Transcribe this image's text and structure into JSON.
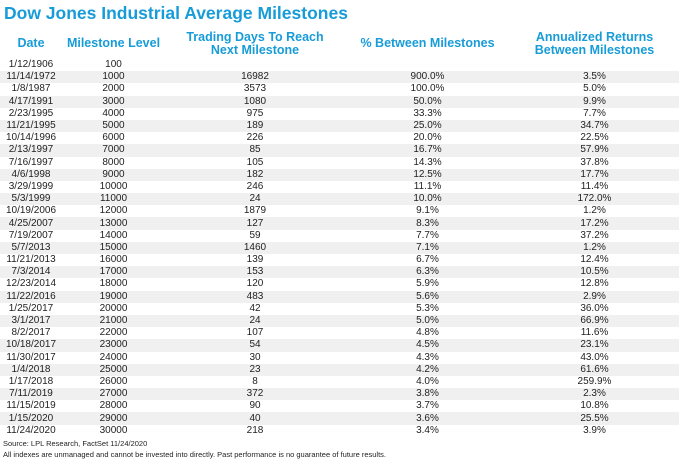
{
  "title": "Dow Jones Industrial Average Milestones",
  "colors": {
    "accent_blue": "#189CD8",
    "row_stripe": "#F0F0F0",
    "body_text": "#1F1F1F",
    "background": "#FFFFFF"
  },
  "chart_data": {
    "type": "table",
    "title": "Dow Jones Industrial Average Milestones",
    "columns": [
      "Date",
      "Milestone Level",
      "Trading Days To Reach\nNext Milestone",
      "% Between Milestones",
      "Annualized Returns\nBetween Milestones"
    ],
    "rows": [
      [
        "1/12/1906",
        "100",
        "",
        "",
        ""
      ],
      [
        "11/14/1972",
        "1000",
        "16982",
        "900.0%",
        "3.5%"
      ],
      [
        "1/8/1987",
        "2000",
        "3573",
        "100.0%",
        "5.0%"
      ],
      [
        "4/17/1991",
        "3000",
        "1080",
        "50.0%",
        "9.9%"
      ],
      [
        "2/23/1995",
        "4000",
        "975",
        "33.3%",
        "7.7%"
      ],
      [
        "11/21/1995",
        "5000",
        "189",
        "25.0%",
        "34.7%"
      ],
      [
        "10/14/1996",
        "6000",
        "226",
        "20.0%",
        "22.5%"
      ],
      [
        "2/13/1997",
        "7000",
        "85",
        "16.7%",
        "57.9%"
      ],
      [
        "7/16/1997",
        "8000",
        "105",
        "14.3%",
        "37.8%"
      ],
      [
        "4/6/1998",
        "9000",
        "182",
        "12.5%",
        "17.7%"
      ],
      [
        "3/29/1999",
        "10000",
        "246",
        "11.1%",
        "11.4%"
      ],
      [
        "5/3/1999",
        "11000",
        "24",
        "10.0%",
        "172.0%"
      ],
      [
        "10/19/2006",
        "12000",
        "1879",
        "9.1%",
        "1.2%"
      ],
      [
        "4/25/2007",
        "13000",
        "127",
        "8.3%",
        "17.2%"
      ],
      [
        "7/19/2007",
        "14000",
        "59",
        "7.7%",
        "37.2%"
      ],
      [
        "5/7/2013",
        "15000",
        "1460",
        "7.1%",
        "1.2%"
      ],
      [
        "11/21/2013",
        "16000",
        "139",
        "6.7%",
        "12.4%"
      ],
      [
        "7/3/2014",
        "17000",
        "153",
        "6.3%",
        "10.5%"
      ],
      [
        "12/23/2014",
        "18000",
        "120",
        "5.9%",
        "12.8%"
      ],
      [
        "11/22/2016",
        "19000",
        "483",
        "5.6%",
        "2.9%"
      ],
      [
        "1/25/2017",
        "20000",
        "42",
        "5.3%",
        "36.0%"
      ],
      [
        "3/1/2017",
        "21000",
        "24",
        "5.0%",
        "66.9%"
      ],
      [
        "8/2/2017",
        "22000",
        "107",
        "4.8%",
        "11.6%"
      ],
      [
        "10/18/2017",
        "23000",
        "54",
        "4.5%",
        "23.1%"
      ],
      [
        "11/30/2017",
        "24000",
        "30",
        "4.3%",
        "43.0%"
      ],
      [
        "1/4/2018",
        "25000",
        "23",
        "4.2%",
        "61.6%"
      ],
      [
        "1/17/2018",
        "26000",
        "8",
        "4.0%",
        "259.9%"
      ],
      [
        "7/11/2019",
        "27000",
        "372",
        "3.8%",
        "2.3%"
      ],
      [
        "11/15/2019",
        "28000",
        "90",
        "3.7%",
        "10.8%"
      ],
      [
        "1/15/2020",
        "29000",
        "40",
        "3.6%",
        "25.5%"
      ],
      [
        "11/24/2020",
        "30000",
        "218",
        "3.4%",
        "3.9%"
      ]
    ]
  },
  "footer": {
    "source": "Source: LPL Research, FactSet 11/24/2020",
    "disclaimer": "All indexes are unmanaged and cannot be invested into directly. Past performance is no guarantee of future results."
  }
}
